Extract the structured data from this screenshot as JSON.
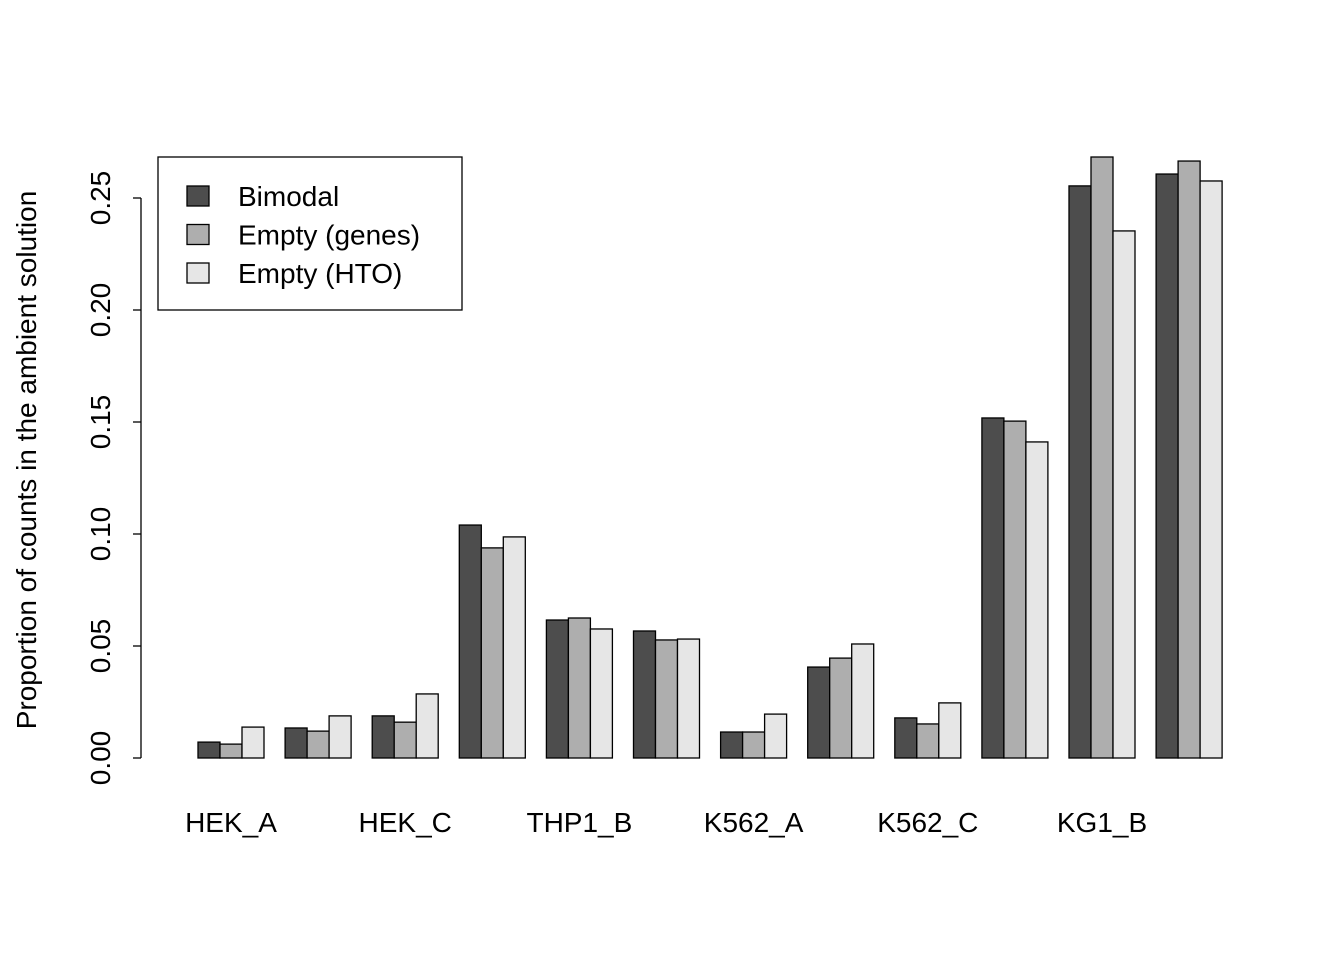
{
  "chart_data": {
    "type": "bar",
    "title": "",
    "xlabel": "",
    "ylabel": "Proportion of counts in the ambient solution",
    "ylim": [
      0,
      0.27
    ],
    "yticks": [
      "0.00",
      "0.05",
      "0.10",
      "0.15",
      "0.20",
      "0.25"
    ],
    "categories": [
      "HEK_A",
      "",
      "HEK_C",
      "",
      "THP1_B",
      "",
      "K562_A",
      "",
      "K562_C",
      "",
      "KG1_B",
      ""
    ],
    "legend_position": "top-left",
    "grid": false,
    "series": [
      {
        "name": "Bimodal",
        "color": "#4d4d4d",
        "values": [
          0.0071,
          0.0134,
          0.0188,
          0.104,
          0.0616,
          0.0567,
          0.0116,
          0.0406,
          0.0179,
          0.1518,
          0.2554,
          0.2607
        ]
      },
      {
        "name": "Empty (genes)",
        "color": "#aeaeae",
        "values": [
          0.0062,
          0.012,
          0.016,
          0.0938,
          0.0625,
          0.0527,
          0.0116,
          0.0446,
          0.0152,
          0.1504,
          0.2683,
          0.2665
        ]
      },
      {
        "name": "Empty (HTO)",
        "color": "#e6e6e6",
        "values": [
          0.0138,
          0.0188,
          0.0286,
          0.0987,
          0.0576,
          0.0531,
          0.0196,
          0.0509,
          0.0246,
          0.1411,
          0.2353,
          0.2576
        ]
      }
    ]
  }
}
